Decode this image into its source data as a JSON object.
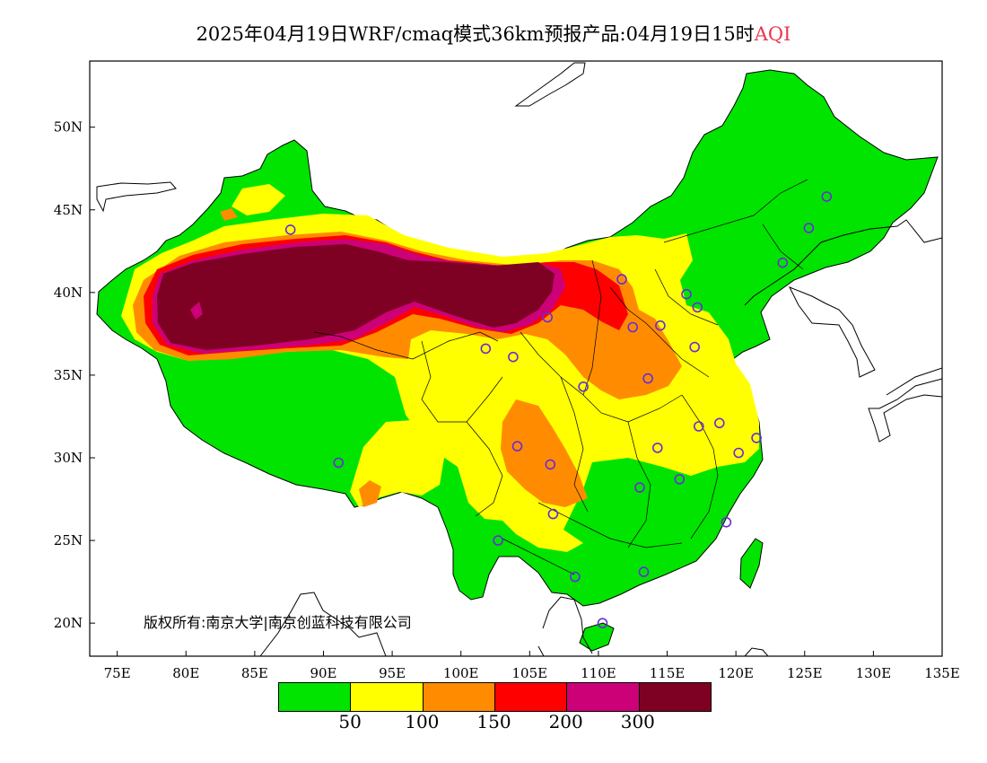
{
  "title": {
    "prefix": "2025年04月19日WRF/cmaq模式36km预报产品:04月19日15时",
    "variable": "AQI"
  },
  "copyright": "版权所有:南京大学|南京创蓝科技有限公司",
  "lat_ticks": [
    "20N",
    "25N",
    "30N",
    "35N",
    "40N",
    "45N",
    "50N"
  ],
  "lon_ticks": [
    "75E",
    "80E",
    "85E",
    "90E",
    "95E",
    "100E",
    "105E",
    "110E",
    "115E",
    "120E",
    "125E",
    "130E",
    "135E"
  ],
  "map_extent": {
    "lon": [
      73,
      135
    ],
    "lat": [
      18,
      54
    ]
  },
  "legend": {
    "colors": [
      "#00e400",
      "#ffff00",
      "#ff8c00",
      "#ff0000",
      "#cc0077",
      "#7e0023"
    ],
    "labels": [
      "50",
      "100",
      "150",
      "200",
      "300"
    ]
  },
  "stations": [
    [
      87.6,
      43.8
    ],
    [
      101.8,
      36.6
    ],
    [
      103.8,
      36.1
    ],
    [
      106.3,
      38.5
    ],
    [
      111.7,
      40.8
    ],
    [
      112.5,
      37.9
    ],
    [
      114.5,
      38.0
    ],
    [
      116.4,
      39.9
    ],
    [
      117.2,
      39.1
    ],
    [
      123.4,
      41.8
    ],
    [
      125.3,
      43.9
    ],
    [
      126.6,
      45.8
    ],
    [
      117.0,
      36.7
    ],
    [
      113.6,
      34.8
    ],
    [
      108.9,
      34.3
    ],
    [
      104.1,
      30.7
    ],
    [
      106.5,
      29.6
    ],
    [
      114.3,
      30.6
    ],
    [
      117.3,
      31.9
    ],
    [
      118.8,
      32.1
    ],
    [
      120.2,
      30.3
    ],
    [
      121.5,
      31.2
    ],
    [
      113.0,
      28.2
    ],
    [
      115.9,
      28.7
    ],
    [
      119.3,
      26.1
    ],
    [
      106.7,
      26.6
    ],
    [
      102.7,
      25.0
    ],
    [
      108.3,
      22.8
    ],
    [
      113.3,
      23.1
    ],
    [
      110.3,
      20.0
    ],
    [
      91.1,
      29.7
    ]
  ]
}
